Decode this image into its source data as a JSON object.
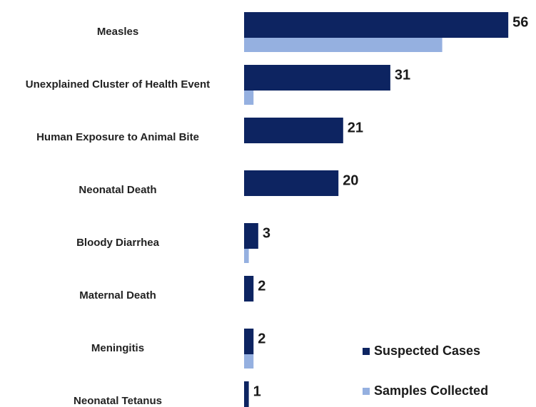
{
  "chart_data": {
    "type": "hbar",
    "categories": [
      "Measles",
      "Unexplained Cluster of Health Event",
      "Human Exposure to Animal Bite",
      "Neonatal Death",
      "Bloody Diarrhea",
      "Maternal Death",
      "Meningitis",
      "Neonatal Tetanus"
    ],
    "series": [
      {
        "name": "Suspected Cases",
        "color": "#0d2461",
        "values": [
          56,
          31,
          21,
          20,
          3,
          2,
          2,
          1
        ],
        "show_labels": true
      },
      {
        "name": "Samples Collected",
        "color": "#95b0e0",
        "values": [
          42,
          2,
          0,
          0,
          1,
          0,
          2,
          0
        ],
        "show_labels": false
      }
    ],
    "legend": "bottom-right"
  }
}
